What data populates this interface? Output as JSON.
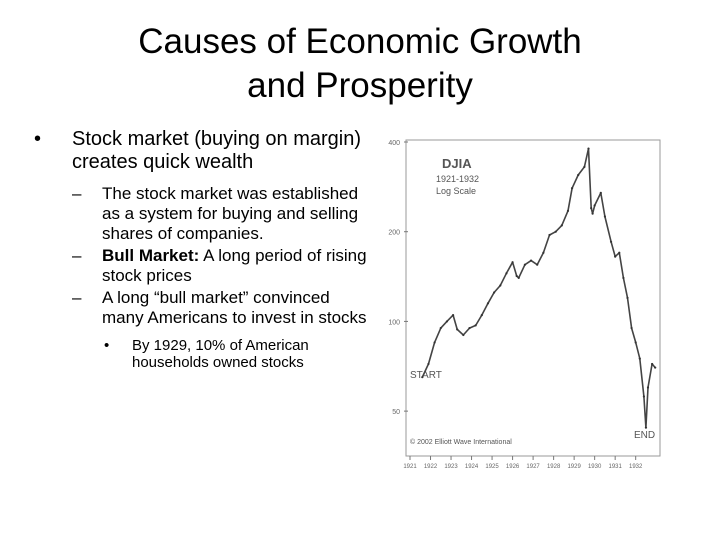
{
  "slide": {
    "title_line1": "Causes of Economic Growth",
    "title_line2": "and Prosperity"
  },
  "bullets": {
    "main": "Stock market (buying on margin) creates quick wealth",
    "sub1": "The stock market was established as a system for buying and selling shares of companies.",
    "sub2_bold": "Bull Market:",
    "sub2_rest": " A long period of rising stock prices",
    "sub3": "A long “bull market” convinced many Americans to invest in stocks",
    "subsub1": "By 1929, 10% of American households owned stocks",
    "marker_main": "•",
    "marker_sub": "–",
    "marker_subsub": "•"
  },
  "chart_data": {
    "type": "line",
    "title": "DJIA",
    "subtitle": "1921-1932",
    "scale_note": "Log Scale",
    "start_label": "START",
    "end_label": "END",
    "copyright": "© 2002 Elliott Wave International",
    "y_ticks": [
      "400",
      "200",
      "100",
      "50"
    ],
    "y_tick_values": [
      400,
      200,
      100,
      50
    ],
    "x_ticks": [
      "1921",
      "1922",
      "1923",
      "1924",
      "1925",
      "1926",
      "1927",
      "1928",
      "1929",
      "1930",
      "1931",
      "1932"
    ],
    "ylim": [
      40,
      400
    ],
    "y_scale": "log",
    "x": [
      1921.6,
      1921.9,
      1922.2,
      1922.5,
      1922.8,
      1923.1,
      1923.3,
      1923.6,
      1923.9,
      1924.2,
      1924.5,
      1924.8,
      1925.1,
      1925.4,
      1925.7,
      1926.0,
      1926.2,
      1926.3,
      1926.6,
      1926.9,
      1927.2,
      1927.5,
      1927.8,
      1928.1,
      1928.4,
      1928.7,
      1928.9,
      1929.2,
      1929.5,
      1929.7,
      1929.83,
      1929.9,
      1930.0,
      1930.3,
      1930.5,
      1930.8,
      1931.0,
      1931.2,
      1931.4,
      1931.6,
      1931.8,
      1932.0,
      1932.2,
      1932.4,
      1932.5,
      1932.6,
      1932.8,
      1932.95
    ],
    "y": [
      65,
      72,
      85,
      95,
      100,
      105,
      94,
      90,
      95,
      97,
      105,
      115,
      125,
      132,
      145,
      158,
      142,
      140,
      155,
      160,
      155,
      170,
      195,
      200,
      210,
      235,
      280,
      310,
      330,
      380,
      240,
      230,
      245,
      270,
      225,
      185,
      165,
      170,
      140,
      120,
      95,
      85,
      75,
      56,
      44,
      60,
      72,
      70
    ]
  }
}
